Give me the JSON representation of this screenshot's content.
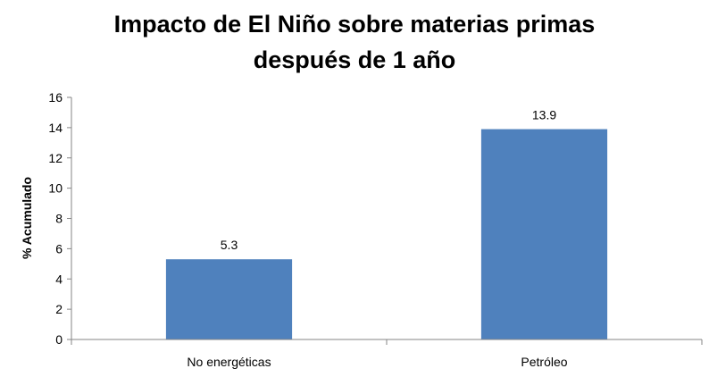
{
  "chart_data": {
    "type": "bar",
    "title_lines": [
      "Impacto de El Niño sobre materias primas",
      "después de 1 año"
    ],
    "xlabel": "",
    "ylabel": "% Acumulado",
    "categories": [
      "No energéticas",
      "Petróleo"
    ],
    "values": [
      5.3,
      13.9
    ],
    "data_labels": [
      "5.3",
      "13.9"
    ],
    "ylim": [
      0,
      16
    ],
    "yticks": [
      0,
      2,
      4,
      6,
      8,
      10,
      12,
      14,
      16
    ],
    "grid": false,
    "legend": "none",
    "bar_color": "#4f81bd"
  }
}
